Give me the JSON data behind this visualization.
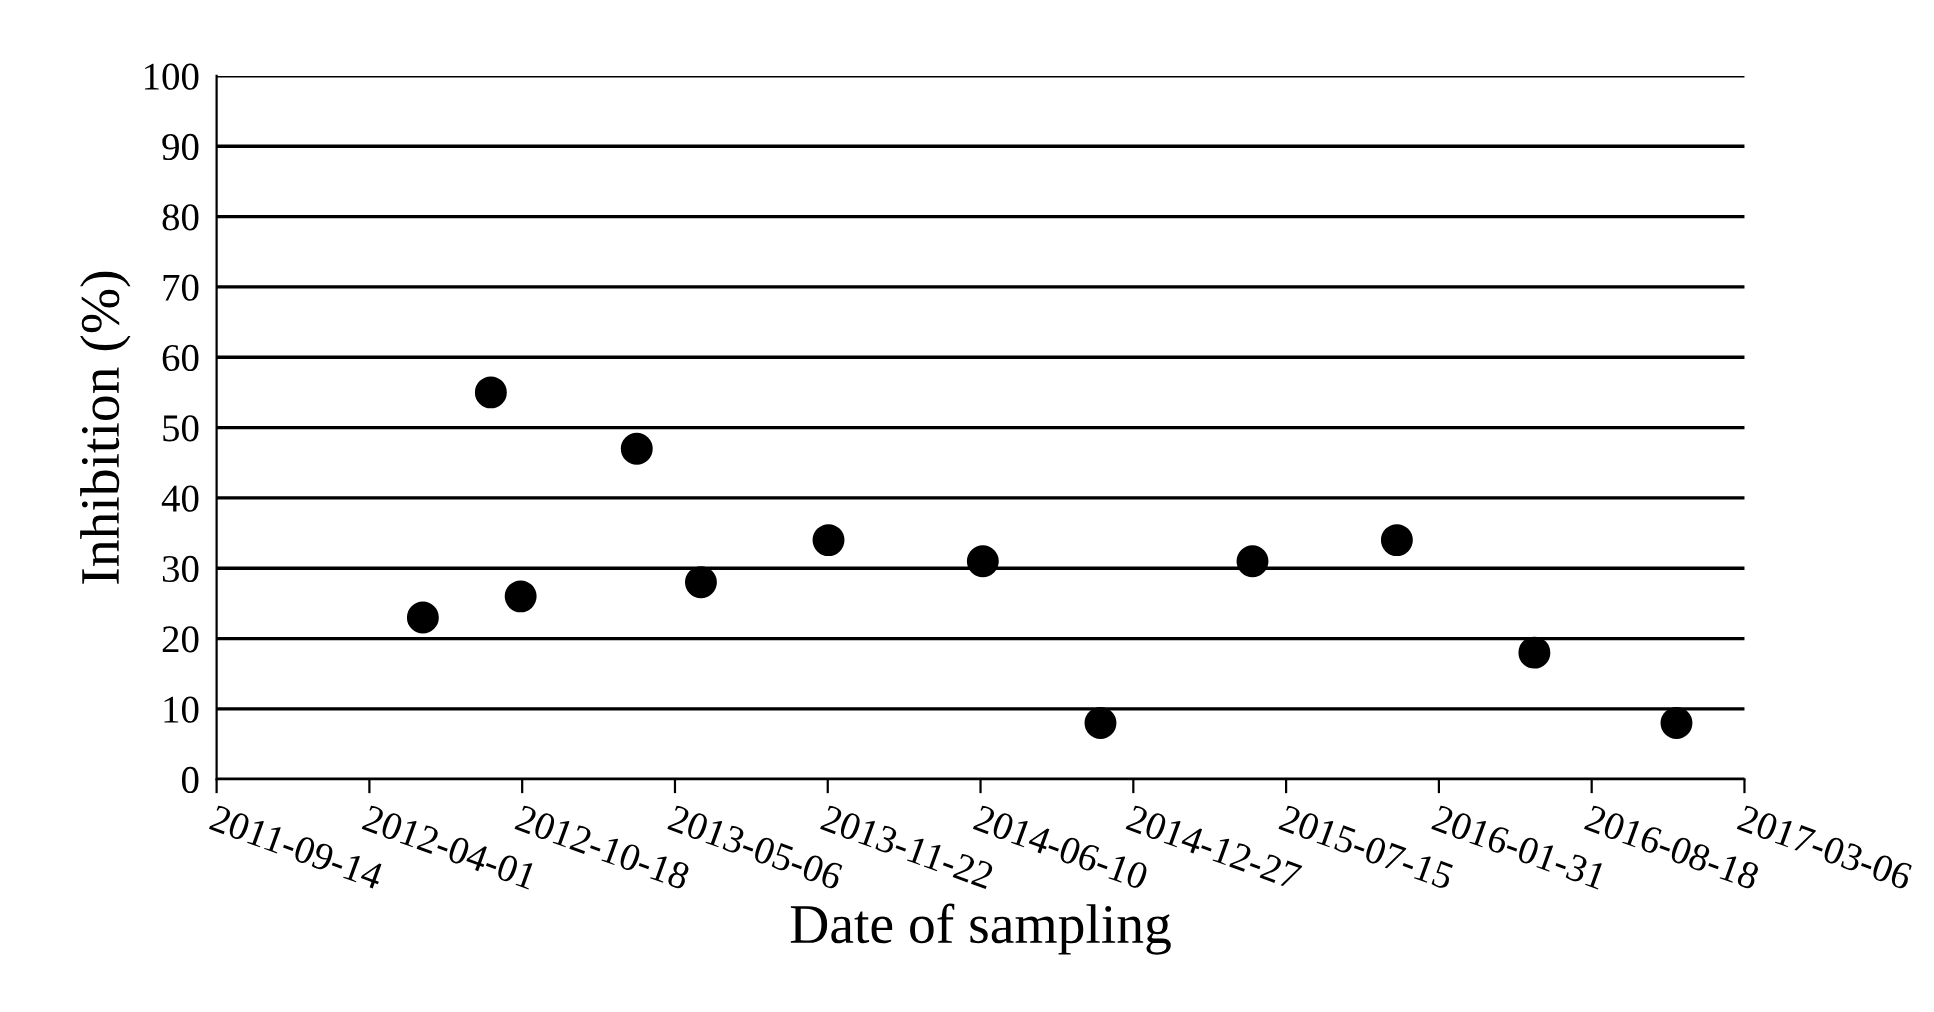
{
  "chart_data": {
    "type": "scatter",
    "xlabel": "Date of sampling",
    "ylabel": "Inhibition (%)",
    "x": [
      "2012-06-10",
      "2012-09-07",
      "2012-10-16",
      "2013-03-17",
      "2013-06-09",
      "2013-11-23",
      "2014-06-13",
      "2014-11-14",
      "2015-06-01",
      "2015-12-07",
      "2016-06-04",
      "2016-12-07"
    ],
    "values": [
      23,
      55,
      26,
      47,
      28,
      34,
      31,
      8,
      31,
      34,
      18,
      8
    ],
    "color": "#000000",
    "marker": "circle",
    "xlim": [
      "2011-09-14",
      "2017-03-06"
    ],
    "xticks": [
      "2011-09-14",
      "2012-04-01",
      "2012-10-18",
      "2013-05-06",
      "2013-11-22",
      "2014-06-10",
      "2014-12-27",
      "2015-07-15",
      "2016-01-31",
      "2016-08-18",
      "2017-03-06"
    ],
    "ylim": [
      0,
      100
    ],
    "yticks": [
      0,
      10,
      20,
      30,
      40,
      50,
      60,
      70,
      80,
      90,
      100
    ],
    "grid": "y",
    "legend": false
  }
}
